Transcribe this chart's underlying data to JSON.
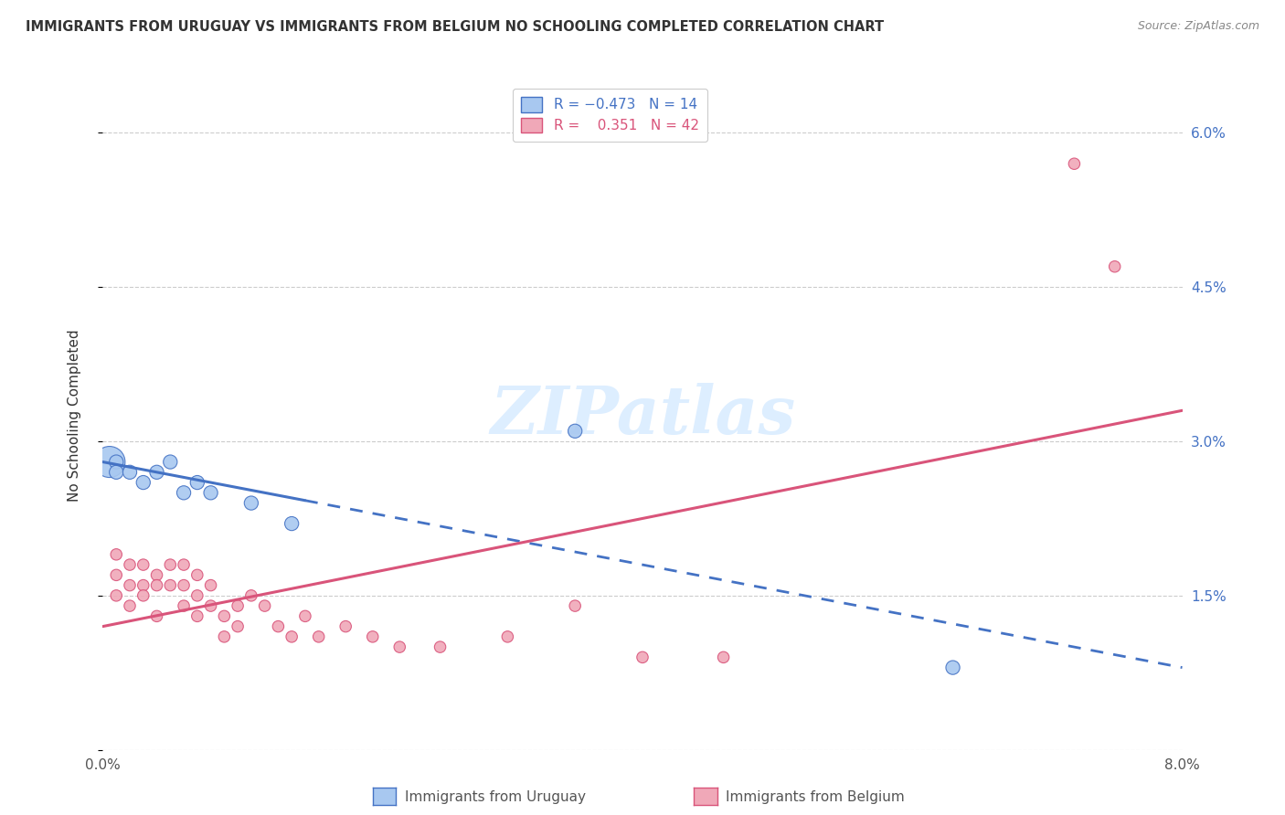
{
  "title": "IMMIGRANTS FROM URUGUAY VS IMMIGRANTS FROM BELGIUM NO SCHOOLING COMPLETED CORRELATION CHART",
  "source": "Source: ZipAtlas.com",
  "ylabel": "No Schooling Completed",
  "xlim": [
    0.0,
    0.08
  ],
  "ylim": [
    0.0,
    0.065
  ],
  "x_ticks": [
    0.0,
    0.02,
    0.04,
    0.06,
    0.08
  ],
  "x_tick_labels": [
    "0.0%",
    "",
    "",
    "",
    "8.0%"
  ],
  "y_ticks": [
    0.0,
    0.015,
    0.03,
    0.045,
    0.06
  ],
  "y_tick_labels_right": [
    "",
    "1.5%",
    "3.0%",
    "4.5%",
    "6.0%"
  ],
  "color_uruguay": "#a8c8f0",
  "color_belgium": "#f0a8b8",
  "color_line_uruguay": "#4472c4",
  "color_line_belgium": "#d9547a",
  "uruguay_x": [
    0.0005,
    0.001,
    0.001,
    0.002,
    0.003,
    0.004,
    0.005,
    0.006,
    0.007,
    0.008,
    0.011,
    0.014,
    0.063,
    0.035
  ],
  "uruguay_y": [
    0.028,
    0.028,
    0.027,
    0.027,
    0.026,
    0.027,
    0.028,
    0.025,
    0.026,
    0.025,
    0.024,
    0.022,
    0.008,
    0.031
  ],
  "uruguay_size": [
    600,
    120,
    120,
    120,
    120,
    120,
    120,
    120,
    120,
    120,
    120,
    120,
    120,
    120
  ],
  "belgium_x": [
    0.001,
    0.001,
    0.001,
    0.002,
    0.002,
    0.002,
    0.003,
    0.003,
    0.003,
    0.004,
    0.004,
    0.004,
    0.005,
    0.005,
    0.006,
    0.006,
    0.006,
    0.007,
    0.007,
    0.007,
    0.008,
    0.008,
    0.009,
    0.009,
    0.01,
    0.01,
    0.011,
    0.012,
    0.013,
    0.014,
    0.015,
    0.016,
    0.018,
    0.02,
    0.022,
    0.025,
    0.03,
    0.04,
    0.046,
    0.035,
    0.072,
    0.075
  ],
  "belgium_y": [
    0.019,
    0.017,
    0.015,
    0.018,
    0.016,
    0.014,
    0.018,
    0.016,
    0.015,
    0.017,
    0.016,
    0.013,
    0.018,
    0.016,
    0.018,
    0.016,
    0.014,
    0.017,
    0.015,
    0.013,
    0.016,
    0.014,
    0.013,
    0.011,
    0.014,
    0.012,
    0.015,
    0.014,
    0.012,
    0.011,
    0.013,
    0.011,
    0.012,
    0.011,
    0.01,
    0.01,
    0.011,
    0.009,
    0.009,
    0.014,
    0.057,
    0.047
  ],
  "belgium_size": [
    80,
    80,
    80,
    80,
    80,
    80,
    80,
    80,
    80,
    80,
    80,
    80,
    80,
    80,
    80,
    80,
    80,
    80,
    80,
    80,
    80,
    80,
    80,
    80,
    80,
    80,
    80,
    80,
    80,
    80,
    80,
    80,
    80,
    80,
    80,
    80,
    80,
    80,
    80,
    80,
    80,
    80
  ],
  "line_uruguay_x0": 0.0,
  "line_uruguay_x1": 0.08,
  "line_uruguay_y0": 0.028,
  "line_uruguay_y1": 0.008,
  "line_belgium_x0": 0.0,
  "line_belgium_x1": 0.08,
  "line_belgium_y0": 0.012,
  "line_belgium_y1": 0.033
}
